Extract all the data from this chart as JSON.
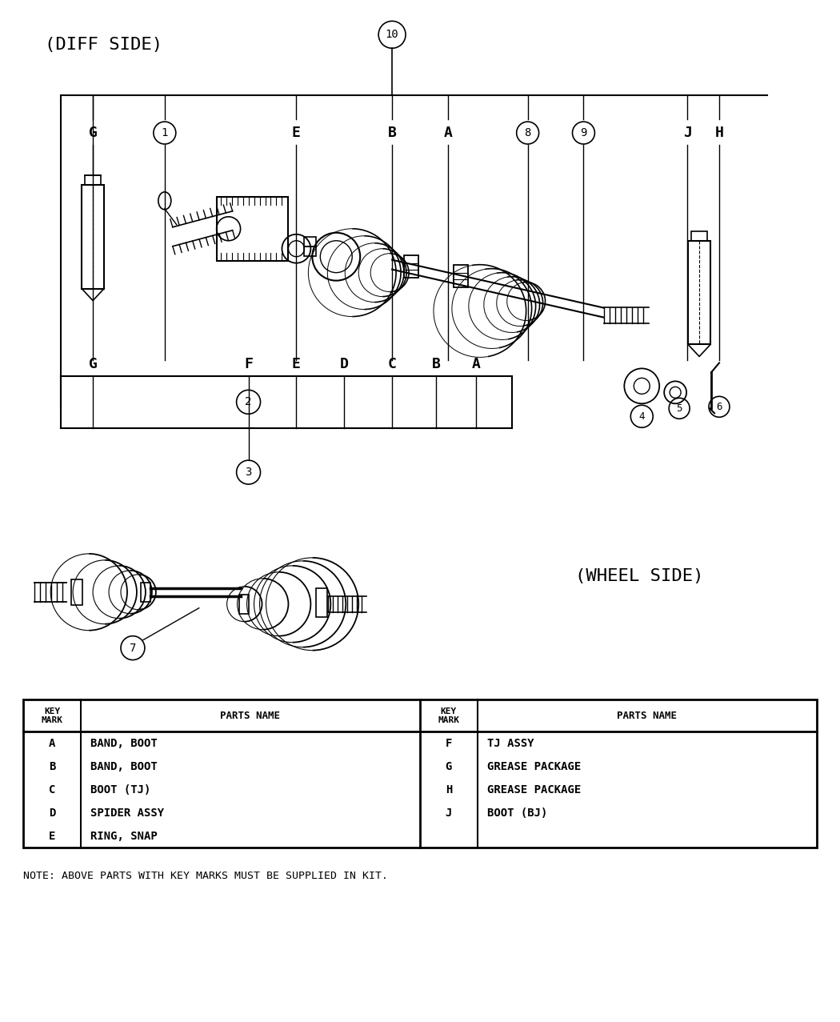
{
  "background_color": "#ffffff",
  "diff_side_label": "(DIFF SIDE)",
  "wheel_side_label": "(WHEEL SIDE)",
  "note_text": "NOTE: ABOVE PARTS WITH KEY MARKS MUST BE SUPPLIED IN KIT.",
  "table_left": [
    [
      "A",
      "BAND, BOOT"
    ],
    [
      "B",
      "BAND, BOOT"
    ],
    [
      "C",
      "BOOT (TJ)"
    ],
    [
      "D",
      "SPIDER ASSY"
    ],
    [
      "E",
      "RING, SNAP"
    ]
  ],
  "table_right": [
    [
      "F",
      "TJ ASSY"
    ],
    [
      "G",
      "GREASE PACKAGE"
    ],
    [
      "H",
      "GREASE PACKAGE"
    ],
    [
      "J",
      "BOOT (BJ)"
    ]
  ],
  "line_color": "#000000",
  "text_color": "#000000",
  "fig_width": 10.5,
  "fig_height": 12.77,
  "dpi": 100
}
